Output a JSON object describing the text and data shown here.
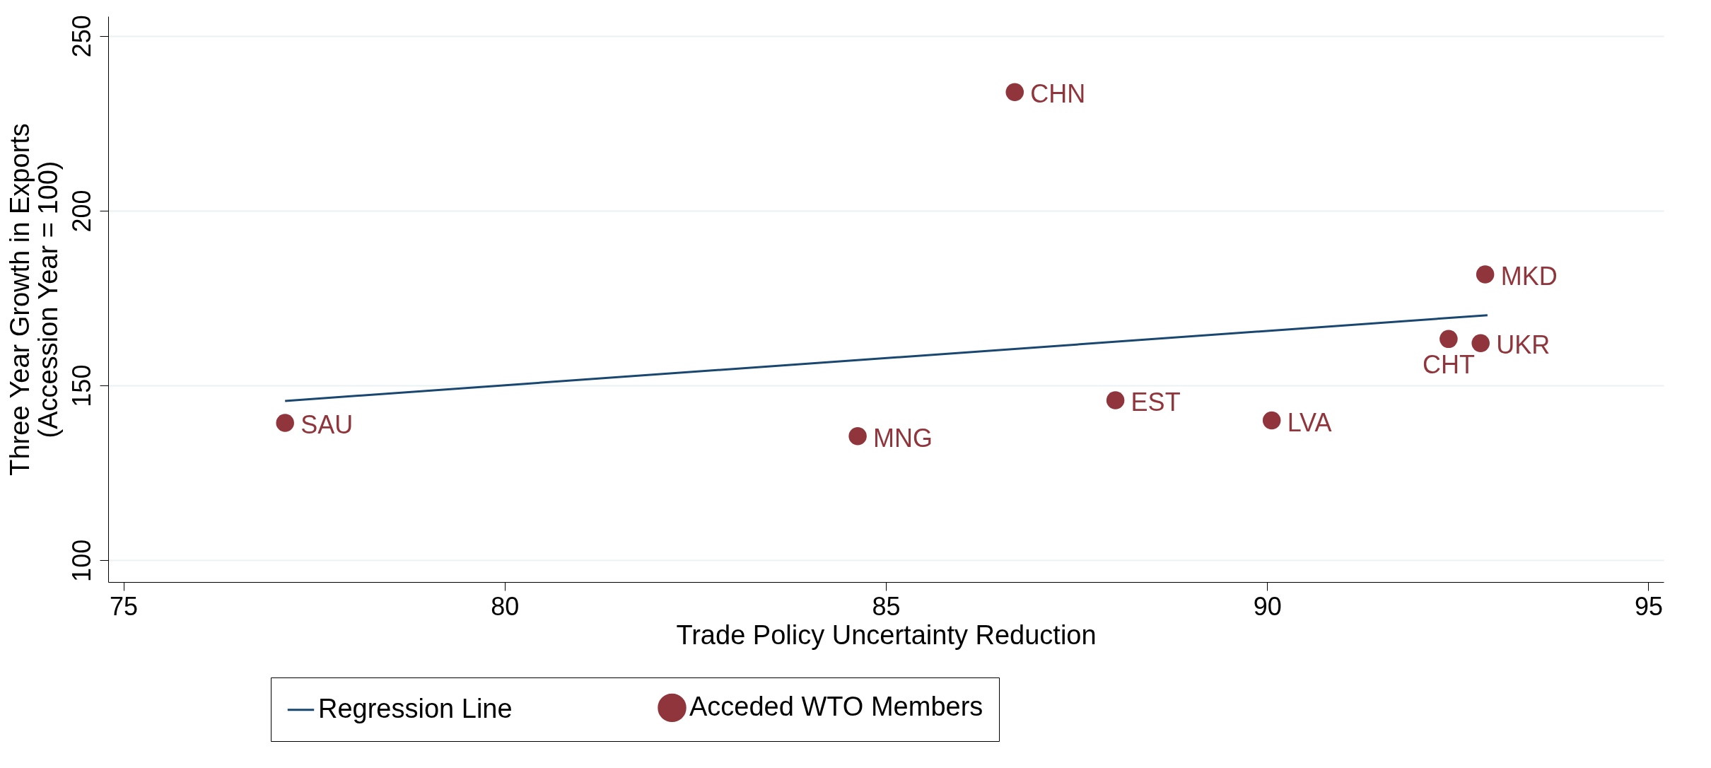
{
  "chart_data": {
    "type": "scatter",
    "xlabel": "Trade Policy Uncertainty Reduction",
    "ylabel": "Three Year Growth in Exports\n(Accession Year = 100)",
    "xlim": [
      74.8,
      95.2
    ],
    "xticks": [
      75,
      80,
      85,
      90,
      95
    ],
    "ylim": [
      93.8,
      255.6
    ],
    "yticks": [
      100,
      150,
      200,
      250
    ],
    "grid": "y",
    "legend": "bottom",
    "series": [
      {
        "name": "Regression Line",
        "type": "line",
        "color": "#1a476f",
        "x": [
          77.12,
          92.89
        ],
        "values": [
          145.6,
          170.1
        ]
      },
      {
        "name": "Acceded WTO Members",
        "marker": "circle",
        "color": "#90353b",
        "x": [
          86.69,
          92.86,
          92.38,
          92.8,
          88.01,
          90.06,
          77.12,
          84.63
        ],
        "values": [
          233.9,
          181.8,
          163.3,
          162.1,
          145.8,
          140.0,
          139.3,
          135.5
        ]
      }
    ],
    "annotations": [
      {
        "text": "CHN",
        "x": 86.69,
        "y": 233.9
      },
      {
        "text": "MKD",
        "x": 92.86,
        "y": 181.8
      },
      {
        "text": "CHT",
        "x": 92.38,
        "y": 163.3
      },
      {
        "text": "UKR",
        "x": 92.8,
        "y": 162.1
      },
      {
        "text": "EST",
        "x": 88.01,
        "y": 145.8
      },
      {
        "text": "LVA",
        "x": 90.06,
        "y": 140.0
      },
      {
        "text": "SAU",
        "x": 77.12,
        "y": 139.3
      },
      {
        "text": "MNG",
        "x": 84.63,
        "y": 135.5
      }
    ]
  }
}
